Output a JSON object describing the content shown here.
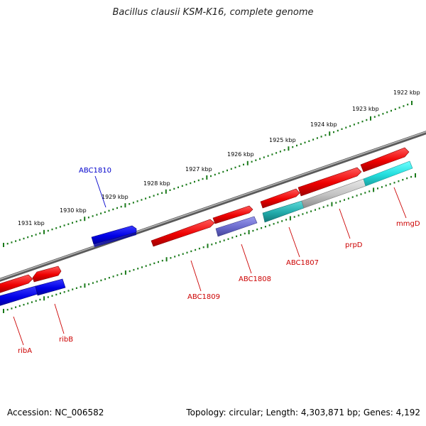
{
  "title": "Bacillus clausii KSM-K16, complete genome",
  "footer": {
    "accession": "Accession: NC_006582",
    "topology": "Topology: circular; Length: 4,303,871 bp; Genes: 4,192"
  },
  "colors": {
    "backbone": "#888888",
    "tick": "#1a7a1a",
    "forward_gene": "#ff0000",
    "reverse_gene": "#0000ff",
    "gene_label_red": "#cc0000",
    "gene_label_blue": "#0000cc"
  },
  "scale_labels": [
    "1922 kbp",
    "1923 kbp",
    "1924 kbp",
    "1925 kbp",
    "1926 kbp",
    "1927 kbp",
    "1928 kbp",
    "1929 kbp",
    "1930 kbp",
    "1931 kbp"
  ],
  "genes": [
    {
      "name": "ABC1810",
      "color": "blue"
    },
    {
      "name": "ribA",
      "color": "red"
    },
    {
      "name": "ribB",
      "color": "red"
    },
    {
      "name": "ABC1809",
      "color": "red"
    },
    {
      "name": "ABC1808",
      "color": "red"
    },
    {
      "name": "ABC1807",
      "color": "red"
    },
    {
      "name": "prpD",
      "color": "red"
    },
    {
      "name": "mmgD",
      "color": "red"
    }
  ]
}
